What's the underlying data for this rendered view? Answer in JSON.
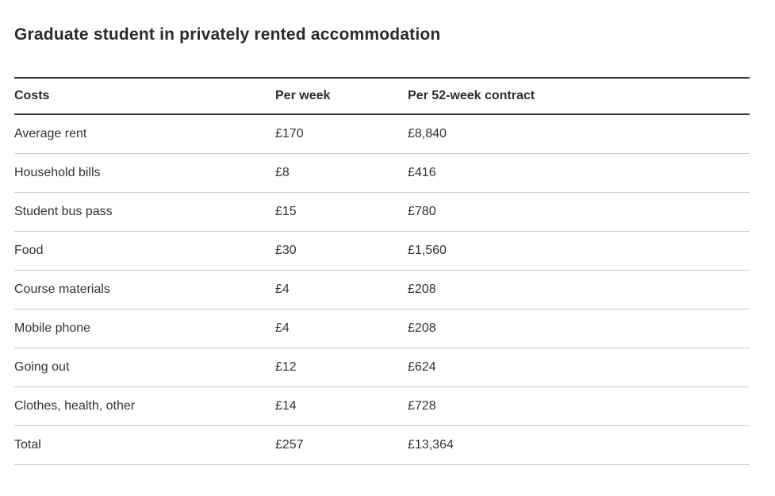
{
  "page": {
    "title": "Graduate student in privately rented accommodation"
  },
  "table": {
    "columns": {
      "costs": "Costs",
      "per_week": "Per week",
      "per_contract": "Per 52-week contract"
    },
    "rows": [
      {
        "label": "Average rent",
        "per_week": "£170",
        "per_contract": "£8,840"
      },
      {
        "label": "Household bills",
        "per_week": "£8",
        "per_contract": "£416"
      },
      {
        "label": "Student bus pass",
        "per_week": "£15",
        "per_contract": "£780"
      },
      {
        "label": "Food",
        "per_week": "£30",
        "per_contract": "£1,560"
      },
      {
        "label": "Course materials",
        "per_week": "£4",
        "per_contract": "£208"
      },
      {
        "label": "Mobile phone",
        "per_week": "£4",
        "per_contract": "£208"
      },
      {
        "label": "Going out",
        "per_week": "£12",
        "per_contract": "£624"
      },
      {
        "label": "Clothes, health, other",
        "per_week": "£14",
        "per_contract": "£728"
      },
      {
        "label": "Total",
        "per_week": "£257",
        "per_contract": "£13,364"
      }
    ]
  },
  "colors": {
    "title_text": "#2b2b2b",
    "body_text": "#333333",
    "header_border": "#333333",
    "row_separator": "#cccccc",
    "background": "#ffffff"
  }
}
